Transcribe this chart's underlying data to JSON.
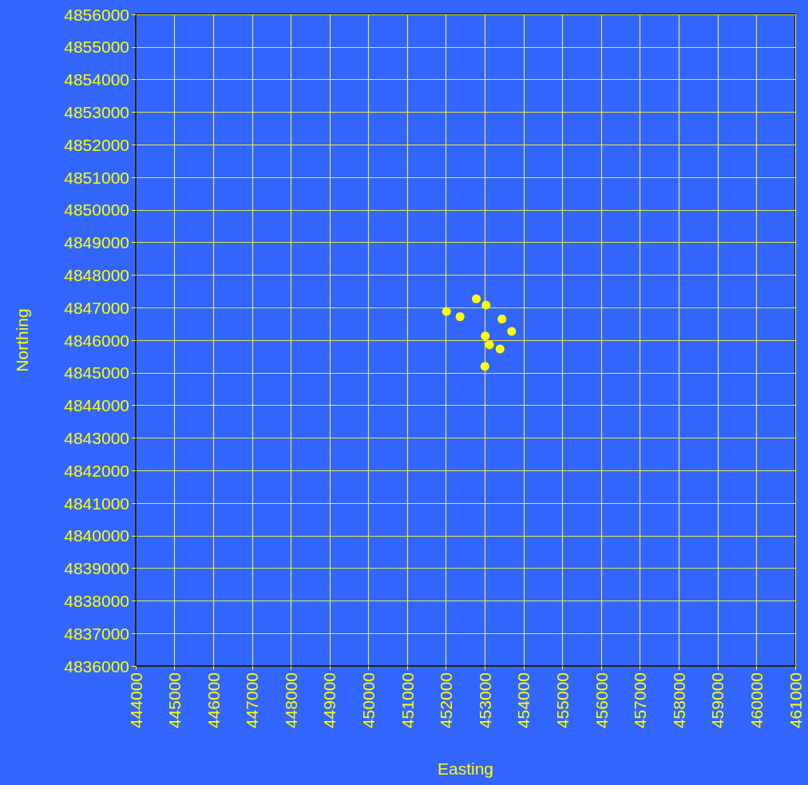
{
  "chart_data": {
    "type": "scatter",
    "xlabel": "Easting",
    "ylabel": "Northing",
    "x": [
      452780,
      453030,
      452010,
      452360,
      453440,
      453690,
      453010,
      453120,
      453390,
      453000
    ],
    "values": [
      4847270,
      4847080,
      4846880,
      4846720,
      4846650,
      4846270,
      4846130,
      4845860,
      4845730,
      4845200
    ],
    "color": "#ffff00",
    "marker": "circle",
    "grid": true,
    "xlim": [
      444000,
      461000
    ],
    "xticks": [
      444000,
      445000,
      446000,
      447000,
      448000,
      449000,
      450000,
      451000,
      452000,
      453000,
      454000,
      455000,
      456000,
      457000,
      458000,
      459000,
      460000,
      461000
    ],
    "ylim": [
      4836000,
      4856000
    ],
    "yticks": [
      4836000,
      4837000,
      4838000,
      4839000,
      4840000,
      4841000,
      4842000,
      4843000,
      4844000,
      4845000,
      4846000,
      4847000,
      4848000,
      4849000,
      4850000,
      4851000,
      4852000,
      4853000,
      4854000,
      4855000,
      4856000
    ]
  }
}
